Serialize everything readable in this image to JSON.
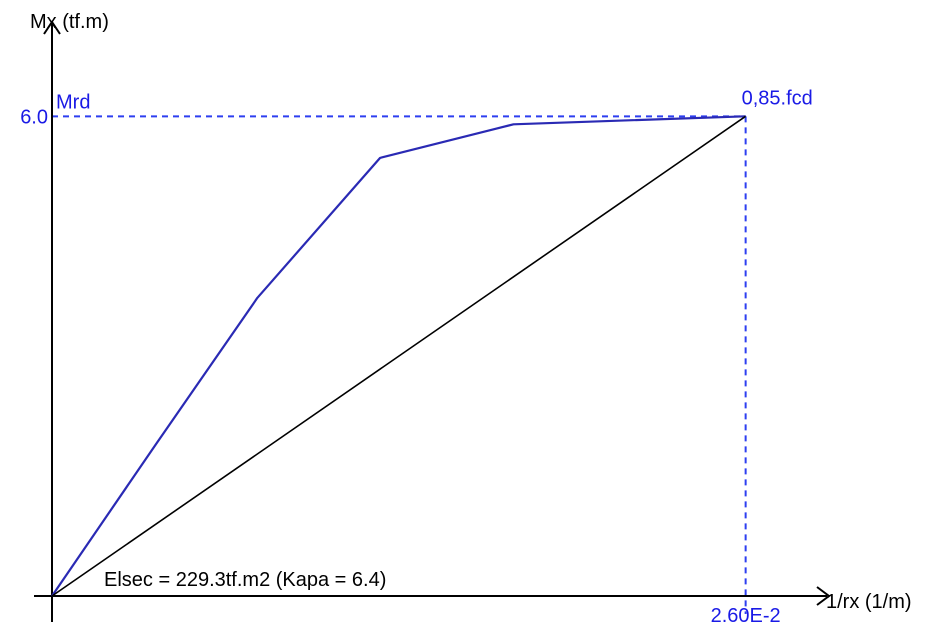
{
  "chart_data": {
    "type": "line",
    "ylabel": "Mx (tf.m)",
    "xlabel": "1/rx (1/m)",
    "y_tick": {
      "value": 6.0,
      "label": "6.0"
    },
    "x_tick": {
      "value": 0.026,
      "label": "2.60E-2"
    },
    "xlim": [
      0,
      0.0286
    ],
    "ylim": [
      0,
      7.23
    ],
    "grid": false,
    "series": [
      {
        "role": "moment-curvature",
        "color": "#2a2ab4",
        "x": [
          0,
          0.0039,
          0.0077,
          0.0123,
          0.0173,
          0.026
        ],
        "y": [
          0,
          1.9,
          3.73,
          5.48,
          5.9,
          6.0
        ]
      },
      {
        "role": "secant-stiffness",
        "color": "#000000",
        "x": [
          0,
          0.026
        ],
        "y": [
          0,
          6.0
        ]
      }
    ],
    "reference_lines": {
      "color": "#2d3ff0",
      "style": "dashed",
      "y_value": 6.0,
      "x_value": 0.026
    },
    "annotations": {
      "mrd": "Mrd",
      "fcd": "0,85.fcd",
      "elsec": "Elsec = 229.3tf.m2 (Kapa = 6.4)"
    },
    "colors": {
      "axis": "#000000",
      "accent": "#1a1ae6",
      "curve": "#2a2ab4"
    }
  }
}
